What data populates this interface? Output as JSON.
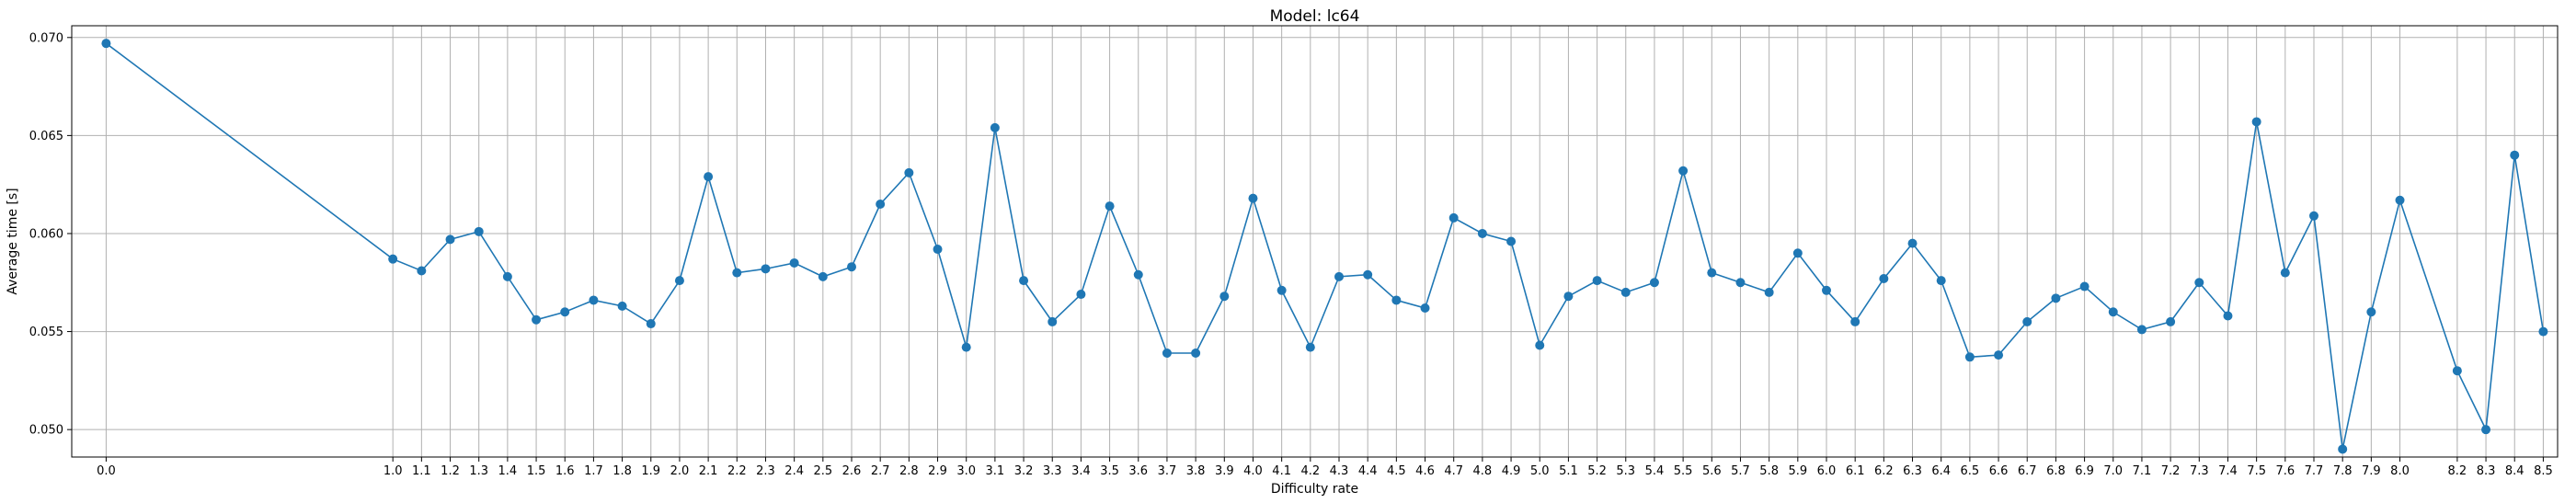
{
  "chart_data": {
    "type": "line",
    "title": "Model: lc64",
    "xlabel": "Difficulty rate",
    "ylabel": "Average time [s]",
    "x": [
      0.0,
      1.0,
      1.1,
      1.2,
      1.3,
      1.4,
      1.5,
      1.6,
      1.7,
      1.8,
      1.9,
      2.0,
      2.1,
      2.2,
      2.3,
      2.4,
      2.5,
      2.6,
      2.7,
      2.8,
      2.9,
      3.0,
      3.1,
      3.2,
      3.3,
      3.4,
      3.5,
      3.6,
      3.7,
      3.8,
      3.9,
      4.0,
      4.1,
      4.2,
      4.3,
      4.4,
      4.5,
      4.6,
      4.7,
      4.8,
      4.9,
      5.0,
      5.1,
      5.2,
      5.3,
      5.4,
      5.5,
      5.6,
      5.7,
      5.8,
      5.9,
      6.0,
      6.1,
      6.2,
      6.3,
      6.4,
      6.5,
      6.6,
      6.7,
      6.8,
      6.9,
      7.0,
      7.1,
      7.2,
      7.3,
      7.4,
      7.5,
      7.6,
      7.7,
      7.8,
      7.9,
      8.0,
      8.2,
      8.3,
      8.4,
      8.5
    ],
    "x_tick_labels": [
      "0.0",
      "1.0",
      "1.1",
      "1.2",
      "1.3",
      "1.4",
      "1.5",
      "1.6",
      "1.7",
      "1.8",
      "1.9",
      "2.0",
      "2.1",
      "2.2",
      "2.3",
      "2.4",
      "2.5",
      "2.6",
      "2.7",
      "2.8",
      "2.9",
      "3.0",
      "3.1",
      "3.2",
      "3.3",
      "3.4",
      "3.5",
      "3.6",
      "3.7",
      "3.8",
      "3.9",
      "4.0",
      "4.1",
      "4.2",
      "4.3",
      "4.4",
      "4.5",
      "4.6",
      "4.7",
      "4.8",
      "4.9",
      "5.0",
      "5.1",
      "5.2",
      "5.3",
      "5.4",
      "5.5",
      "5.6",
      "5.7",
      "5.8",
      "5.9",
      "6.0",
      "6.1",
      "6.2",
      "6.3",
      "6.4",
      "6.5",
      "6.6",
      "6.7",
      "6.8",
      "6.9",
      "7.0",
      "7.1",
      "7.2",
      "7.3",
      "7.4",
      "7.5",
      "7.6",
      "7.7",
      "7.8",
      "7.9",
      "8.0",
      "8.2",
      "8.3",
      "8.4",
      "8.5"
    ],
    "series": [
      {
        "values": [
          0.0697,
          0.0587,
          0.0581,
          0.0597,
          0.0601,
          0.0578,
          0.0556,
          0.056,
          0.0566,
          0.0563,
          0.0554,
          0.0576,
          0.0629,
          0.058,
          0.0582,
          0.0585,
          0.0578,
          0.0583,
          0.0615,
          0.0631,
          0.0592,
          0.0542,
          0.0654,
          0.0576,
          0.0555,
          0.0569,
          0.0614,
          0.0579,
          0.0539,
          0.0539,
          0.0568,
          0.0618,
          0.0571,
          0.0542,
          0.0578,
          0.0579,
          0.0566,
          0.0562,
          0.0608,
          0.06,
          0.0596,
          0.0543,
          0.0568,
          0.0576,
          0.057,
          0.0575,
          0.0632,
          0.058,
          0.0575,
          0.057,
          0.059,
          0.0571,
          0.0555,
          0.0577,
          0.0595,
          0.0576,
          0.0537,
          0.0538,
          0.0555,
          0.0567,
          0.0573,
          0.056,
          0.0551,
          0.0555,
          0.0575,
          0.0558,
          0.0657,
          0.058,
          0.0609,
          0.049,
          0.056,
          0.0617,
          0.053,
          0.05,
          0.064,
          0.055
        ]
      }
    ],
    "xlim": [
      -0.12,
      8.55
    ],
    "ylim": [
      0.0486,
      0.0706
    ],
    "y_ticks": [
      0.05,
      0.055,
      0.06,
      0.065,
      0.07
    ],
    "y_tick_labels": [
      "0.050",
      "0.055",
      "0.060",
      "0.065",
      "0.070"
    ],
    "grid": true,
    "line_color": "#1f77b4",
    "marker": "circle"
  }
}
